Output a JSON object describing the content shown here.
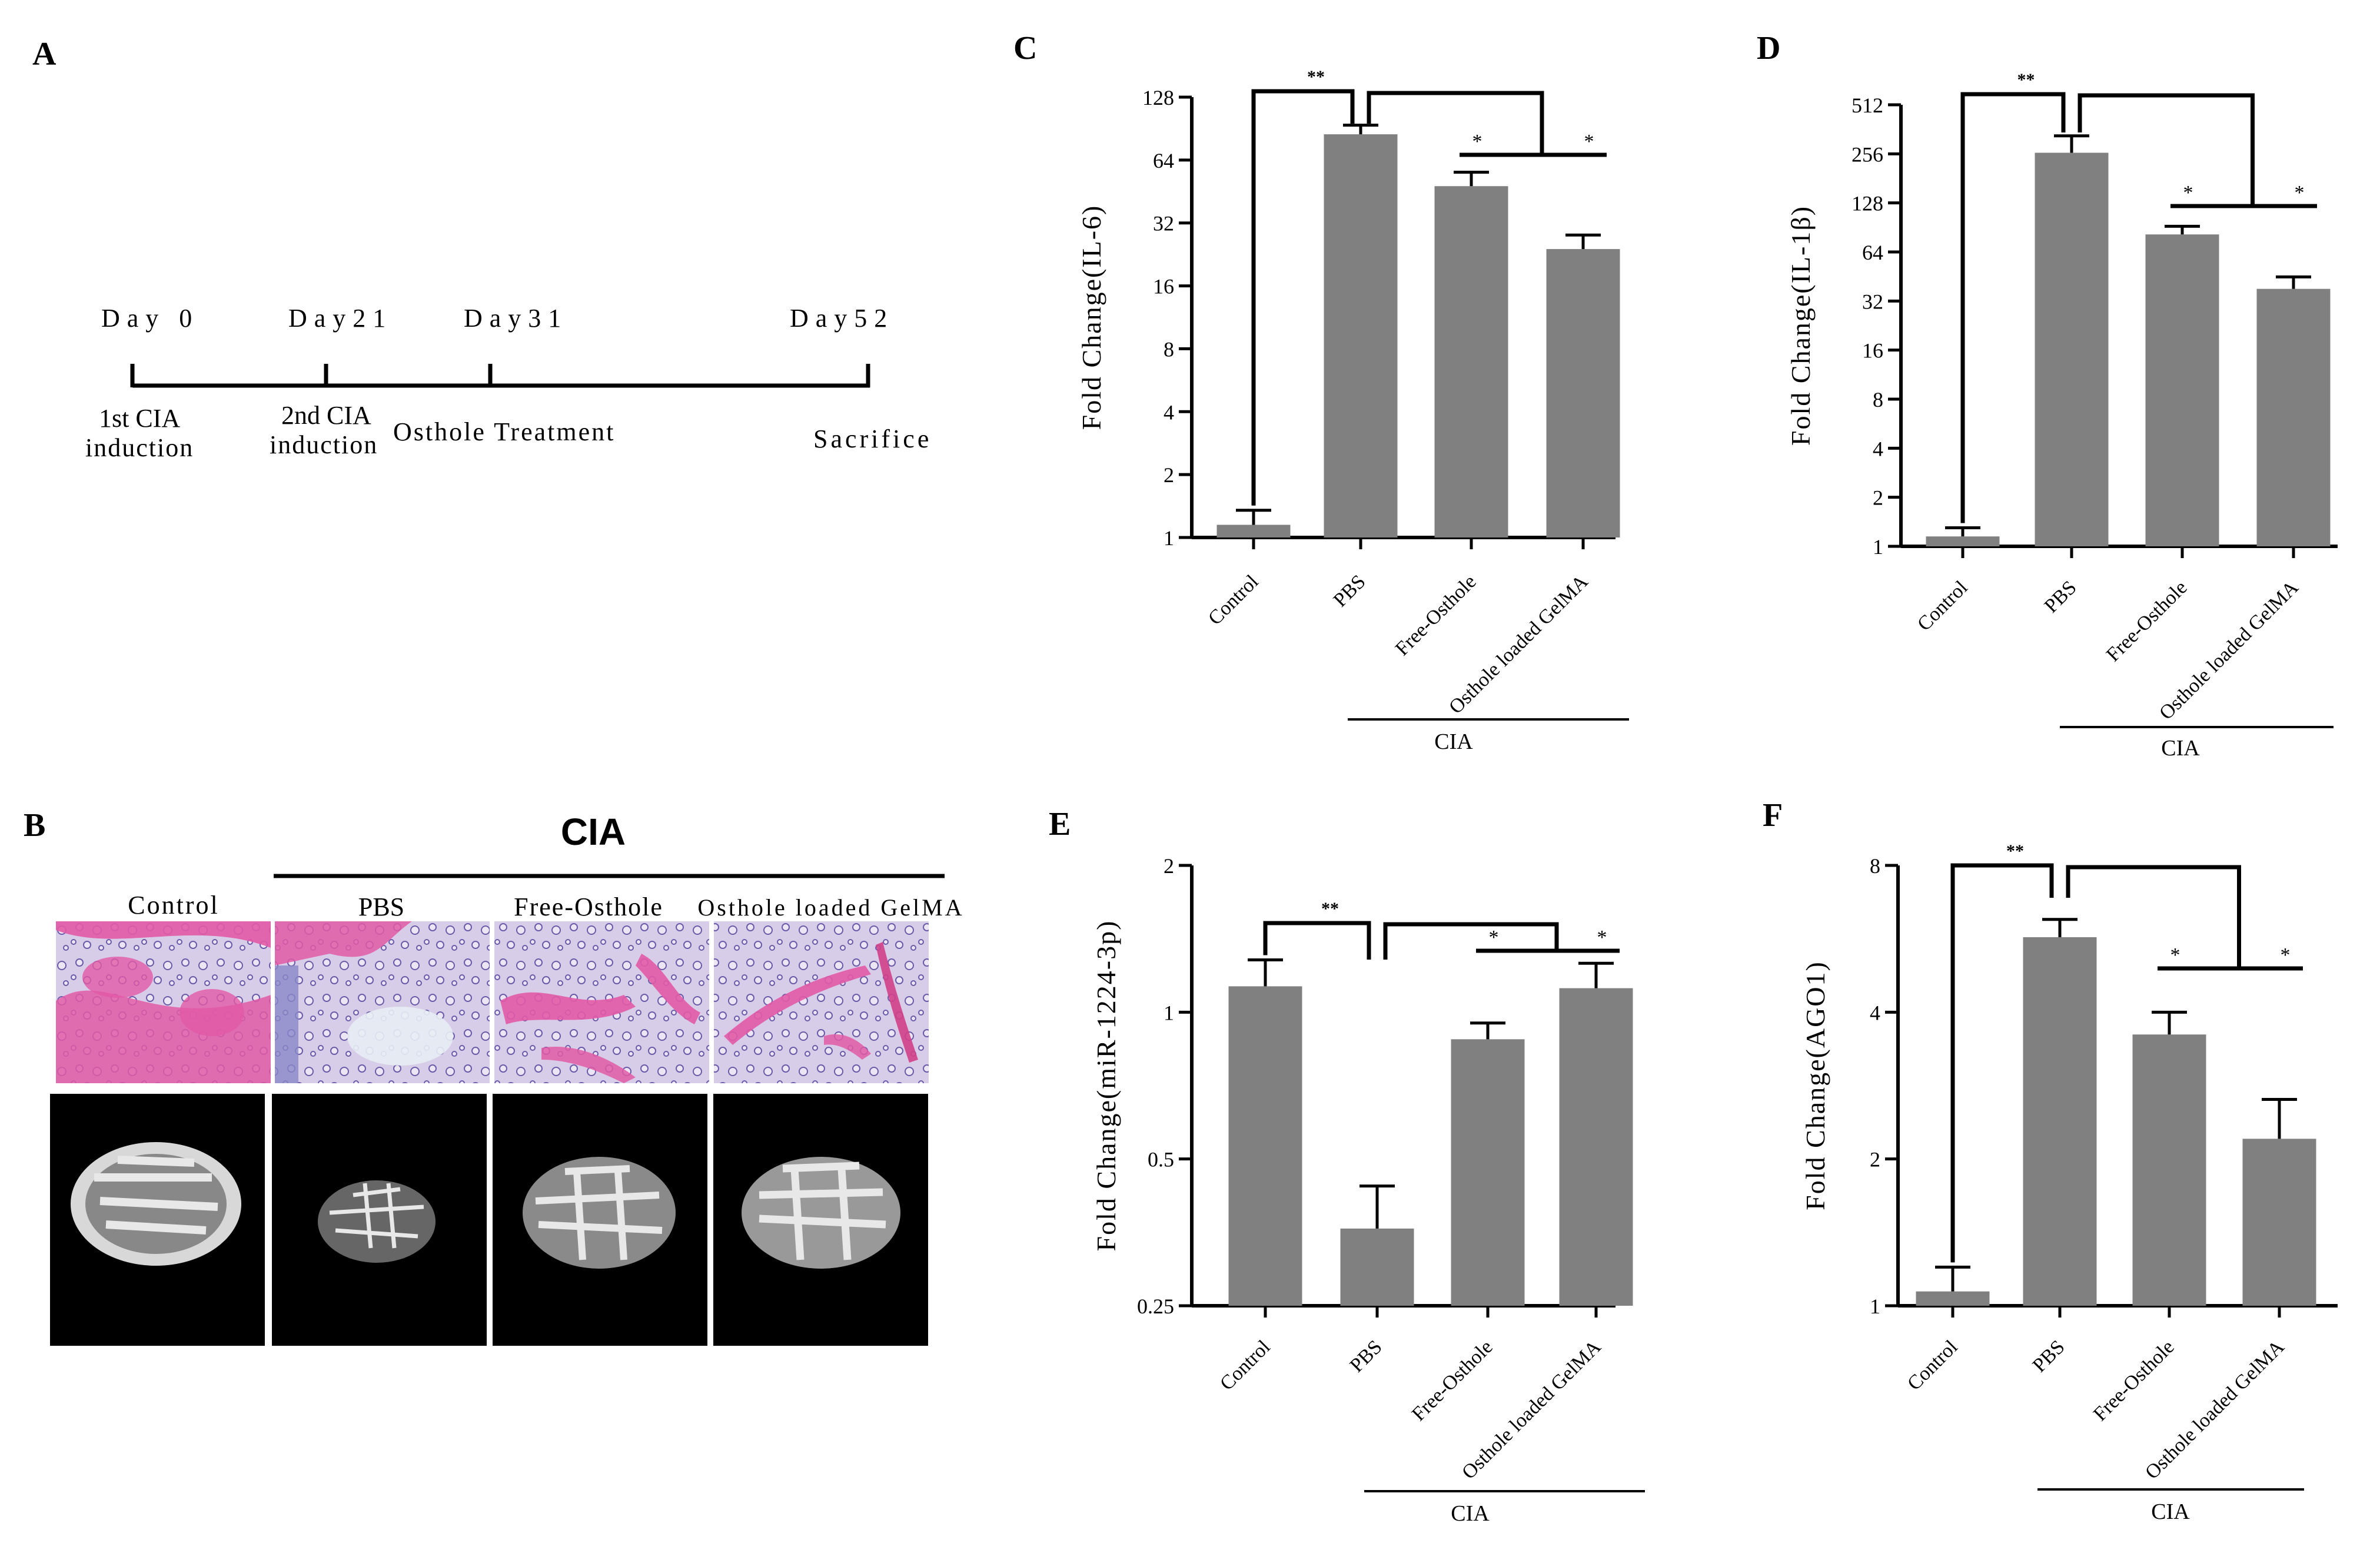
{
  "panels": {
    "A": {
      "letter": "A",
      "days": [
        "Day 0",
        "Day21",
        "Day31",
        "Day52"
      ],
      "events": [
        "1st CIA",
        "induction",
        "2nd CIA",
        "induction",
        "Osthole  Treatment",
        "Sacrifice"
      ]
    },
    "B": {
      "letter": "B",
      "group_header": "CIA",
      "columns": [
        "Control",
        "PBS",
        "Free-Osthole",
        "Osthole loaded  GelMA"
      ],
      "colors": {
        "he_pink": "#e25aa6",
        "he_blue": "#5a4a9a",
        "he_bg": "#d8cde8",
        "ct_bg": "#000000",
        "ct_bone": "#e8e8e8"
      }
    }
  },
  "chart_data": [
    {
      "panel": "C",
      "type": "bar",
      "scale": "log2",
      "categories": [
        "Control",
        "PBS",
        "Free-Osthole",
        "Osthole loaded GelMA"
      ],
      "values": [
        1.15,
        85,
        48,
        24
      ],
      "errors": [
        1.35,
        94,
        56,
        28
      ],
      "ylabel": "Fold Change(IL-6)",
      "yticks": [
        1,
        2,
        4,
        8,
        16,
        32,
        64,
        128
      ],
      "ylim": [
        1,
        128
      ],
      "group_label": "CIA",
      "significance": [
        "**",
        "*",
        "*"
      ],
      "bar_color": "#808080"
    },
    {
      "panel": "D",
      "type": "bar",
      "scale": "log2",
      "categories": [
        "Control",
        "PBS",
        "Free-Osthole",
        "Osthole loaded GelMA"
      ],
      "values": [
        1.15,
        260,
        82,
        38
      ],
      "errors": [
        1.3,
        330,
        92,
        45
      ],
      "ylabel": "Fold Change(IL-1β)",
      "yticks": [
        1,
        2,
        4,
        8,
        16,
        32,
        64,
        128,
        256,
        512
      ],
      "ylim": [
        1,
        512
      ],
      "group_label": "CIA",
      "significance": [
        "**",
        "*",
        "*"
      ],
      "bar_color": "#808080"
    },
    {
      "panel": "E",
      "type": "bar",
      "scale": "log2",
      "categories": [
        "Control",
        "PBS",
        "Free-Osthole",
        "Osthole loaded GelMA"
      ],
      "values": [
        1.13,
        0.36,
        0.88,
        1.12
      ],
      "errors": [
        1.28,
        0.44,
        0.95,
        1.26
      ],
      "ylabel": "Fold Change(miR-1224-3p)",
      "yticks": [
        0.25,
        0.5,
        1,
        2
      ],
      "ylim": [
        0.25,
        2
      ],
      "group_label": "CIA",
      "significance": [
        "**",
        "*",
        "*"
      ],
      "bar_color": "#808080"
    },
    {
      "panel": "F",
      "type": "bar",
      "scale": "log2",
      "categories": [
        "Control",
        "PBS",
        "Free-Osthole",
        "Osthole loaded GelMA"
      ],
      "values": [
        1.07,
        5.7,
        3.6,
        2.2
      ],
      "errors": [
        1.2,
        6.2,
        4.0,
        2.65
      ],
      "ylabel": "Fold Change(AGO1)",
      "yticks": [
        1,
        2,
        4,
        8
      ],
      "ylim": [
        1,
        8
      ],
      "group_label": "CIA",
      "significance": [
        "**",
        "*",
        "*"
      ],
      "bar_color": "#808080"
    }
  ]
}
